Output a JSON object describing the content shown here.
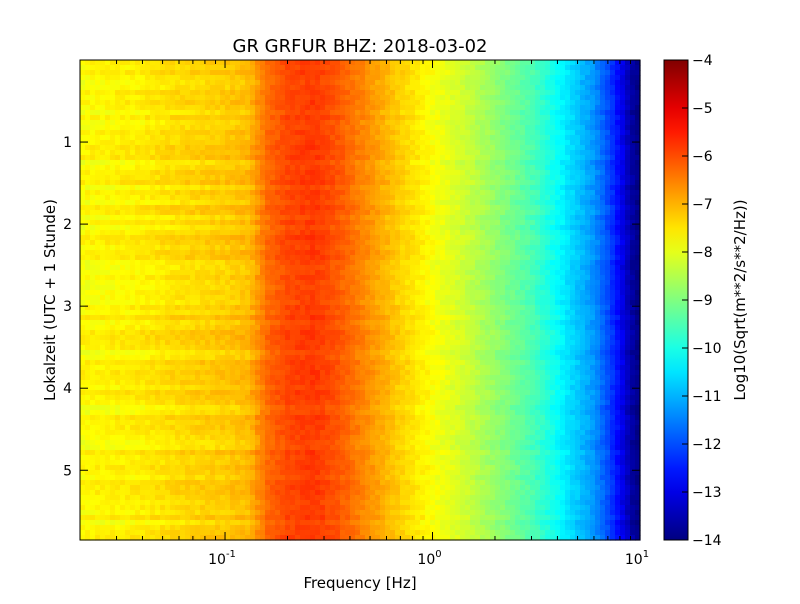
{
  "chart_data": {
    "type": "heatmap",
    "title": "GR GRFUR BHZ: 2018-03-02",
    "xlabel": "Frequency [Hz]",
    "ylabel": "Lokalzeit (UTC + 1 Stunde)",
    "x_scale": "log",
    "xlim": [
      0.02,
      10
    ],
    "ylim": [
      5.85,
      0
    ],
    "x_ticks": [
      {
        "value": 0.1,
        "base": "10",
        "exp": "-1"
      },
      {
        "value": 1,
        "base": "10",
        "exp": "0"
      },
      {
        "value": 10,
        "base": "10",
        "exp": "1"
      }
    ],
    "y_ticks": [
      {
        "value": 1,
        "label": "1"
      },
      {
        "value": 2,
        "label": "2"
      },
      {
        "value": 3,
        "label": "3"
      },
      {
        "value": 4,
        "label": "4"
      },
      {
        "value": 5,
        "label": "5"
      }
    ],
    "grid": false,
    "colorbar": {
      "label": "Log10(Sqrt(m**2/s**2/Hz))",
      "colormap": "jet",
      "range": [
        -14,
        -4
      ],
      "ticks": [
        {
          "value": -4,
          "label": "−4"
        },
        {
          "value": -5,
          "label": "−5"
        },
        {
          "value": -6,
          "label": "−6"
        },
        {
          "value": -7,
          "label": "−7"
        },
        {
          "value": -8,
          "label": "−8"
        },
        {
          "value": -9,
          "label": "−9"
        },
        {
          "value": -10,
          "label": "−10"
        },
        {
          "value": -11,
          "label": "−11"
        },
        {
          "value": -12,
          "label": "−12"
        },
        {
          "value": -13,
          "label": "−13"
        },
        {
          "value": -14,
          "label": "−14"
        }
      ]
    },
    "spectrum_profile": {
      "description_frequencies_hz": [
        0.02,
        0.04,
        0.06,
        0.1,
        0.13,
        0.16,
        0.2,
        0.27,
        0.35,
        0.5,
        0.7,
        1.0,
        1.5,
        2.0,
        3.0,
        4.0,
        5.0,
        6.0,
        7.0,
        8.0,
        9.0,
        10.0
      ],
      "psd_log10": [
        -7.75,
        -7.6,
        -7.4,
        -7.25,
        -7.1,
        -6.3,
        -5.95,
        -5.8,
        -6.1,
        -6.7,
        -7.3,
        -7.8,
        -8.3,
        -8.8,
        -9.5,
        -10.2,
        -10.8,
        -11.3,
        -12.0,
        -12.8,
        -13.6,
        -14.0
      ]
    }
  }
}
